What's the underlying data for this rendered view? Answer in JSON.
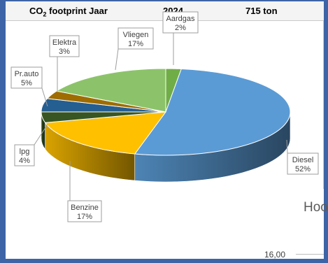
{
  "header": {
    "title_main": "CO",
    "title_sub": "2",
    "title_rest": " footprint Jaar",
    "year": "2024",
    "total": "715 ton"
  },
  "chart_data": {
    "type": "pie",
    "title": "CO2 footprint Jaar 2024 715 ton",
    "slices": [
      {
        "label": "Aardgas",
        "pct_label": "2%",
        "value": 2,
        "color": "#70ad47"
      },
      {
        "label": "Diesel",
        "pct_label": "52%",
        "value": 52,
        "color": "#5b9bd5"
      },
      {
        "label": "Benzine",
        "pct_label": "17%",
        "value": 17,
        "color": "#ffc000"
      },
      {
        "label": "lpg",
        "pct_label": "4%",
        "value": 4,
        "color": "#375623"
      },
      {
        "label": "Pr.auto",
        "pct_label": "5%",
        "value": 5,
        "color": "#255e91"
      },
      {
        "label": "Elektra",
        "pct_label": "3%",
        "value": 3,
        "color": "#9e6c00"
      },
      {
        "label": "Vliegen",
        "pct_label": "17%",
        "value": 17,
        "color": "#8cc36a"
      }
    ]
  },
  "background": {
    "heading_fragment": "Hoo",
    "axis_value": "16,00"
  }
}
